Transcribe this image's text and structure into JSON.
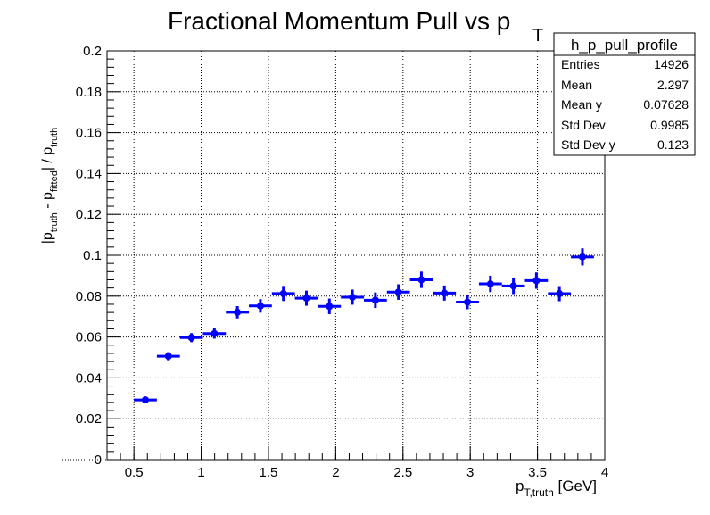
{
  "chart_data": {
    "type": "scatter",
    "title": {
      "main": "Fractional Momentum Pull vs p",
      "sub": "T"
    },
    "xlabel": {
      "main": "p",
      "sub": "T,truth",
      "tail": " [GeV]"
    },
    "ylabel": {
      "part1": "|p",
      "sub1": "truth",
      "part2": " - p",
      "sub2": "fitted",
      "part3": "| / p",
      "sub3": "truth"
    },
    "xlim": [
      0.3,
      4.0
    ],
    "ylim": [
      0,
      0.2
    ],
    "x_ticks": [
      0.5,
      1,
      1.5,
      2,
      2.5,
      3,
      3.5,
      4
    ],
    "x_tick_labels": [
      "0.5",
      "1",
      "1.5",
      "2",
      "2.5",
      "3",
      "3.5",
      "4"
    ],
    "y_ticks": [
      0,
      0.02,
      0.04,
      0.06,
      0.08,
      0.1,
      0.12,
      0.14,
      0.16,
      0.18,
      0.2
    ],
    "y_tick_labels": [
      "0",
      "0.02",
      "0.04",
      "0.06",
      "0.08",
      "0.1",
      "0.12",
      "0.14",
      "0.16",
      "0.18",
      "0.2"
    ],
    "grid": true,
    "marker_color": "#0000ff",
    "series": [
      {
        "name": "h_p_pull_profile",
        "x_bin_half_width": 0.0855,
        "x": [
          0.585,
          0.756,
          0.927,
          1.098,
          1.269,
          1.44,
          1.611,
          1.782,
          1.953,
          2.124,
          2.295,
          2.466,
          2.637,
          2.808,
          2.979,
          3.15,
          3.321,
          3.492,
          3.663,
          3.834
        ],
        "y": [
          0.0292,
          0.0506,
          0.0597,
          0.0617,
          0.0721,
          0.0752,
          0.0813,
          0.079,
          0.075,
          0.0795,
          0.078,
          0.082,
          0.088,
          0.0815,
          0.0771,
          0.086,
          0.085,
          0.0876,
          0.0812,
          0.0992
        ],
        "y_err": [
          0.001,
          0.002,
          0.0022,
          0.0025,
          0.003,
          0.0033,
          0.0037,
          0.0037,
          0.0038,
          0.0037,
          0.0038,
          0.0038,
          0.004,
          0.0037,
          0.0035,
          0.004,
          0.004,
          0.004,
          0.0037,
          0.0042
        ]
      }
    ],
    "stats_box": {
      "title": "h_p_pull_profile",
      "rows": [
        {
          "label": "Entries",
          "value": "14926"
        },
        {
          "label": "Mean",
          "value": "2.297"
        },
        {
          "label": "Mean y",
          "value": "0.07628"
        },
        {
          "label": "Std Dev",
          "value": "0.9985"
        },
        {
          "label": "Std Dev y",
          "value": "0.123"
        }
      ],
      "legend_position": "top-right"
    }
  }
}
